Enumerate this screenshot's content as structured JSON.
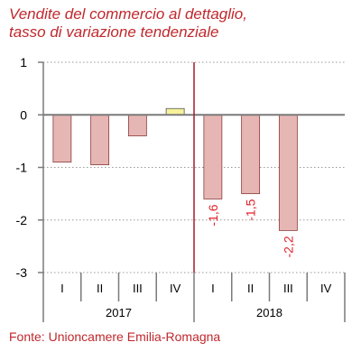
{
  "header": {
    "title_line1": "Vendite del commercio al dettaglio,",
    "title_line2": "tasso di variazione tendenziale"
  },
  "footer": {
    "source": "Fonte: Unioncamere Emilia-Romagna"
  },
  "colors": {
    "title": "#c0282d",
    "negative_bar": "#e6b6b4",
    "negative_bar_border": "#8c3b3b",
    "positive_bar": "#f6f29a",
    "positive_bar_border": "#555555",
    "separator_line": "#a01c2c",
    "data_label": "#e0222a"
  },
  "chart_data": {
    "type": "bar",
    "title": "Vendite del commercio al dettaglio, tasso di variazione tendenziale",
    "xlabel": "",
    "ylabel": "",
    "ylim": [
      -3,
      1
    ],
    "yticks": [
      1,
      0,
      -1,
      -2,
      -3
    ],
    "grid": true,
    "legend": "none",
    "categories": [
      "I",
      "II",
      "III",
      "IV",
      "I",
      "II",
      "III",
      "IV"
    ],
    "groups": [
      {
        "label": "2017",
        "categories": [
          "I",
          "II",
          "III",
          "IV"
        ]
      },
      {
        "label": "2018",
        "categories": [
          "I",
          "II",
          "III",
          "IV"
        ]
      }
    ],
    "values": [
      -0.9,
      -0.95,
      -0.4,
      0.12,
      -1.6,
      -1.5,
      -2.2,
      null
    ],
    "data_labels": [
      null,
      null,
      null,
      null,
      "-1,6",
      "-1,5",
      "-2,2",
      null
    ]
  }
}
